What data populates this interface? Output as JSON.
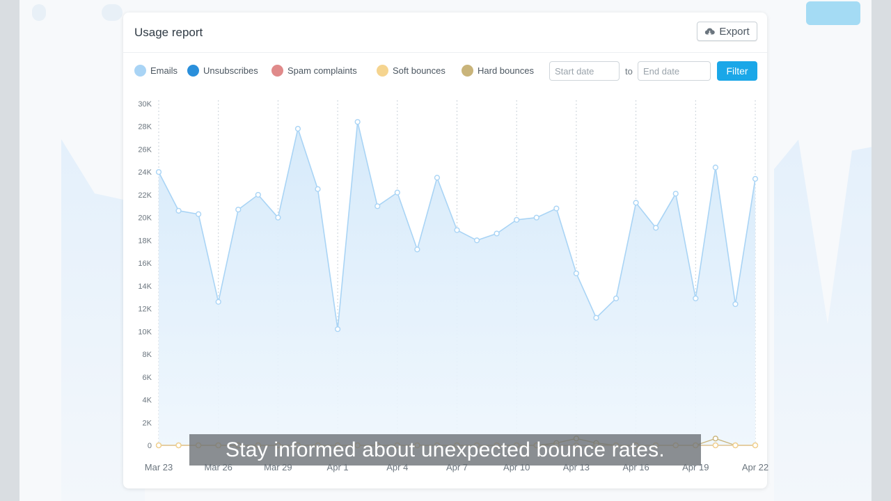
{
  "card": {
    "title": "Usage report",
    "export_label": "Export"
  },
  "legend": [
    {
      "label": "Emails",
      "color": "#a9d4f5"
    },
    {
      "label": "Unsubscribes",
      "color": "#2a8fdb"
    },
    {
      "label": "Spam complaints",
      "color": "#e08a8a"
    },
    {
      "label": "Soft bounces",
      "color": "#f5d48f"
    },
    {
      "label": "Hard bounces",
      "color": "#c9b47a"
    }
  ],
  "filters": {
    "start_placeholder": "Start date",
    "to_label": "to",
    "end_placeholder": "End date",
    "filter_label": "Filter"
  },
  "caption": "Stay informed about unexpected bounce rates.",
  "chart_data": {
    "type": "area",
    "x": [
      "Mar 23",
      "Mar 24",
      "Mar 25",
      "Mar 26",
      "Mar 27",
      "Mar 28",
      "Mar 29",
      "Mar 30",
      "Mar 31",
      "Apr 1",
      "Apr 2",
      "Apr 3",
      "Apr 4",
      "Apr 5",
      "Apr 6",
      "Apr 7",
      "Apr 8",
      "Apr 9",
      "Apr 10",
      "Apr 11",
      "Apr 12",
      "Apr 13",
      "Apr 14",
      "Apr 15",
      "Apr 16",
      "Apr 17",
      "Apr 18",
      "Apr 19",
      "Apr 20",
      "Apr 21",
      "Apr 22"
    ],
    "x_tick_labels": [
      "Mar 23",
      "Mar 26",
      "Mar 29",
      "Apr 1",
      "Apr 4",
      "Apr 7",
      "Apr 10",
      "Apr 13",
      "Apr 16",
      "Apr 19",
      "Apr 22"
    ],
    "y_ticks": [
      0,
      2000,
      4000,
      6000,
      8000,
      10000,
      12000,
      14000,
      16000,
      18000,
      20000,
      22000,
      24000,
      26000,
      28000,
      30000
    ],
    "y_tick_labels": [
      "0",
      "2K",
      "4K",
      "6K",
      "8K",
      "10K",
      "12K",
      "14K",
      "16K",
      "18K",
      "20K",
      "22K",
      "24K",
      "26K",
      "28K",
      "30K"
    ],
    "ylim": [
      0,
      30000
    ],
    "grid": "vertical dotted",
    "series": [
      {
        "name": "Emails",
        "color": "#a9d4f5",
        "values": [
          24000,
          20600,
          20300,
          12600,
          20700,
          22000,
          20000,
          27800,
          22500,
          10200,
          28400,
          21000,
          22200,
          17200,
          23500,
          18900,
          18000,
          18600,
          19800,
          20000,
          20800,
          15100,
          11200,
          12900,
          21300,
          19100,
          22100,
          12900,
          24400,
          12400,
          23400
        ]
      },
      {
        "name": "Unsubscribes",
        "color": "#2a8fdb",
        "values": [
          0,
          0,
          0,
          0,
          0,
          0,
          0,
          0,
          0,
          0,
          0,
          0,
          0,
          0,
          0,
          0,
          0,
          0,
          0,
          0,
          0,
          0,
          0,
          0,
          0,
          0,
          0,
          0,
          0,
          0,
          0
        ]
      },
      {
        "name": "Spam complaints",
        "color": "#e08a8a",
        "values": [
          0,
          0,
          0,
          0,
          0,
          0,
          0,
          0,
          0,
          0,
          0,
          0,
          0,
          0,
          0,
          0,
          0,
          0,
          0,
          0,
          0,
          0,
          0,
          0,
          0,
          0,
          0,
          0,
          0,
          0,
          0
        ]
      },
      {
        "name": "Soft bounces",
        "color": "#f5d48f",
        "values": [
          0,
          0,
          0,
          0,
          0,
          0,
          0,
          0,
          0,
          0,
          0,
          0,
          0,
          0,
          0,
          0,
          0,
          0,
          0,
          0,
          0,
          0,
          0,
          0,
          0,
          0,
          0,
          0,
          0,
          0,
          0
        ]
      },
      {
        "name": "Hard bounces",
        "color": "#c9b47a",
        "values": [
          0,
          0,
          0,
          0,
          0,
          0,
          0,
          0,
          0,
          0,
          0,
          0,
          0,
          0,
          0,
          0,
          0,
          0,
          0,
          0,
          200,
          600,
          200,
          0,
          0,
          0,
          0,
          0,
          600,
          0,
          0
        ]
      }
    ]
  }
}
